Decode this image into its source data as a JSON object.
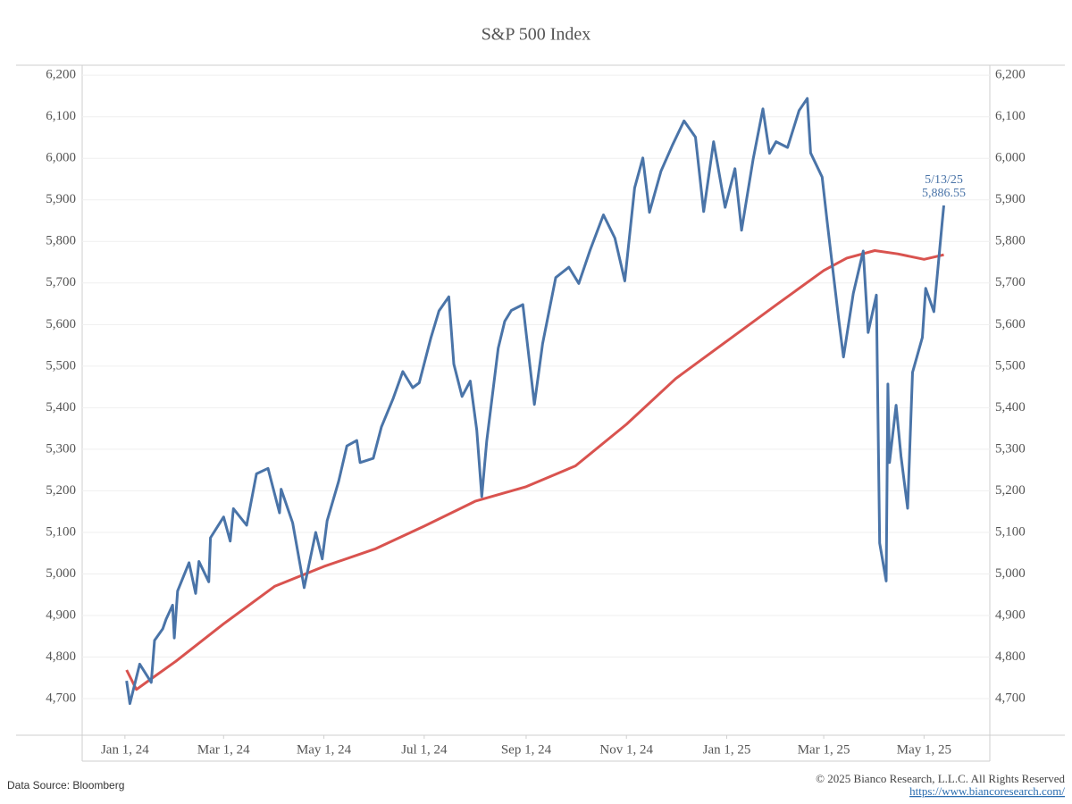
{
  "chart_data": {
    "type": "line",
    "title": "S&P 500 Index",
    "xlim": [
      "2023-12-06",
      "2025-06-10"
    ],
    "xticks": [
      {
        "value": "2024-01-01",
        "label": "Jan 1, 24"
      },
      {
        "value": "2024-03-01",
        "label": "Mar 1, 24"
      },
      {
        "value": "2024-05-01",
        "label": "May 1, 24"
      },
      {
        "value": "2024-07-01",
        "label": "Jul 1, 24"
      },
      {
        "value": "2024-09-01",
        "label": "Sep 1, 24"
      },
      {
        "value": "2024-11-01",
        "label": "Nov 1, 24"
      },
      {
        "value": "2025-01-01",
        "label": "Jan 1, 25"
      },
      {
        "value": "2025-03-01",
        "label": "Mar 1, 25"
      },
      {
        "value": "2025-05-01",
        "label": "May 1, 25"
      }
    ],
    "ylim": [
      4612,
      6224
    ],
    "yticks": [
      {
        "value": 4700,
        "label": "4,700"
      },
      {
        "value": 4800,
        "label": "4,800"
      },
      {
        "value": 4900,
        "label": "4,900"
      },
      {
        "value": 5000,
        "label": "5,000"
      },
      {
        "value": 5100,
        "label": "5,100"
      },
      {
        "value": 5200,
        "label": "5,200"
      },
      {
        "value": 5300,
        "label": "5,300"
      },
      {
        "value": 5400,
        "label": "5,400"
      },
      {
        "value": 5500,
        "label": "5,500"
      },
      {
        "value": 5600,
        "label": "5,600"
      },
      {
        "value": 5700,
        "label": "5,700"
      },
      {
        "value": 5800,
        "label": "5,800"
      },
      {
        "value": 5900,
        "label": "5,900"
      },
      {
        "value": 6000,
        "label": "6,000"
      },
      {
        "value": 6100,
        "label": "6,100"
      },
      {
        "value": 6200,
        "label": "6,200"
      }
    ],
    "grid": true,
    "series": [
      {
        "color": "#4a74a8",
        "x": [
          "2024-01-02",
          "2024-01-04",
          "2024-01-10",
          "2024-01-17",
          "2024-01-19",
          "2024-01-24",
          "2024-01-26",
          "2024-01-30",
          "2024-01-31",
          "2024-02-02",
          "2024-02-09",
          "2024-02-13",
          "2024-02-15",
          "2024-02-21",
          "2024-02-22",
          "2024-03-01",
          "2024-03-05",
          "2024-03-07",
          "2024-03-15",
          "2024-03-21",
          "2024-03-28",
          "2024-04-04",
          "2024-04-05",
          "2024-04-12",
          "2024-04-19",
          "2024-04-26",
          "2024-04-30",
          "2024-05-03",
          "2024-05-10",
          "2024-05-15",
          "2024-05-21",
          "2024-05-23",
          "2024-05-31",
          "2024-06-05",
          "2024-06-12",
          "2024-06-18",
          "2024-06-24",
          "2024-06-28",
          "2024-07-05",
          "2024-07-10",
          "2024-07-16",
          "2024-07-19",
          "2024-07-24",
          "2024-07-29",
          "2024-08-02",
          "2024-08-05",
          "2024-08-08",
          "2024-08-15",
          "2024-08-19",
          "2024-08-23",
          "2024-08-30",
          "2024-09-06",
          "2024-09-11",
          "2024-09-19",
          "2024-09-27",
          "2024-10-03",
          "2024-10-10",
          "2024-10-18",
          "2024-10-25",
          "2024-10-31",
          "2024-11-06",
          "2024-11-11",
          "2024-11-15",
          "2024-11-22",
          "2024-11-29",
          "2024-12-06",
          "2024-12-13",
          "2024-12-18",
          "2024-12-24",
          "2024-12-31",
          "2025-01-06",
          "2025-01-10",
          "2025-01-17",
          "2025-01-23",
          "2025-01-27",
          "2025-01-31",
          "2025-02-07",
          "2025-02-14",
          "2025-02-19",
          "2025-02-21",
          "2025-02-28",
          "2025-03-03",
          "2025-03-10",
          "2025-03-13",
          "2025-03-19",
          "2025-03-25",
          "2025-03-28",
          "2025-04-02",
          "2025-04-04",
          "2025-04-08",
          "2025-04-09",
          "2025-04-10",
          "2025-04-14",
          "2025-04-17",
          "2025-04-21",
          "2025-04-24",
          "2025-04-30",
          "2025-05-02",
          "2025-05-07",
          "2025-05-12",
          "2025-05-13"
        ],
        "values": [
          4743,
          4688,
          4783,
          4739,
          4840,
          4868,
          4891,
          4925,
          4846,
          4959,
          5027,
          4953,
          5030,
          4981,
          5087,
          5137,
          5079,
          5157,
          5117,
          5241,
          5254,
          5147,
          5204,
          5123,
          4967,
          5100,
          5036,
          5128,
          5223,
          5308,
          5321,
          5268,
          5278,
          5354,
          5421,
          5487,
          5448,
          5460,
          5567,
          5633,
          5667,
          5505,
          5427,
          5464,
          5346,
          5186,
          5319,
          5543,
          5608,
          5634,
          5648,
          5408,
          5554,
          5713,
          5738,
          5699,
          5780,
          5864,
          5808,
          5705,
          5929,
          6001,
          5870,
          5969,
          6032,
          6090,
          6051,
          5872,
          6040,
          5882,
          5975,
          5827,
          5997,
          6119,
          6012,
          6040,
          6026,
          6115,
          6144,
          6013,
          5955,
          5850,
          5615,
          5522,
          5675,
          5777,
          5581,
          5671,
          5074,
          4983,
          5457,
          5268,
          5406,
          5283,
          5158,
          5485,
          5569,
          5687,
          5631,
          5844,
          5886.55
        ]
      },
      {
        "color": "#d9534f",
        "x": [
          "2024-01-02",
          "2024-01-08",
          "2024-01-16",
          "2024-02-01",
          "2024-03-01",
          "2024-04-01",
          "2024-05-01",
          "2024-06-01",
          "2024-07-01",
          "2024-08-01",
          "2024-09-01",
          "2024-10-01",
          "2024-11-01",
          "2024-12-01",
          "2025-01-01",
          "2025-02-01",
          "2025-03-01",
          "2025-03-15",
          "2025-04-01",
          "2025-04-15",
          "2025-05-01",
          "2025-05-13"
        ],
        "values": [
          4769,
          4722,
          4745,
          4790,
          4880,
          4970,
          5018,
          5060,
          5115,
          5175,
          5210,
          5260,
          5360,
          5470,
          5560,
          5650,
          5730,
          5760,
          5778,
          5770,
          5757,
          5768
        ]
      }
    ],
    "annotations": [
      {
        "x": "2025-05-13",
        "text": "5/13/25",
        "value": 5886.55,
        "label": "5,886.55"
      }
    ]
  },
  "footer": {
    "source": "Data Source: Bloomberg",
    "copyright": "© 2025 Bianco Research, L.L.C. All Rights Reserved",
    "url": "https://www.biancoresearch.com/"
  }
}
